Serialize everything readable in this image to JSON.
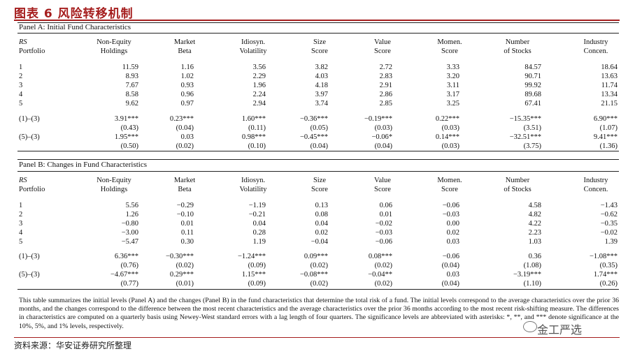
{
  "title": "图表 6 风险转移机制",
  "headers": [
    [
      "RS",
      "Portfolio"
    ],
    [
      "Non-Equity",
      "Holdings"
    ],
    [
      "Market",
      "Beta"
    ],
    [
      "Idiosyn.",
      "Volatility"
    ],
    [
      "Size",
      "Score"
    ],
    [
      "Value",
      "Score"
    ],
    [
      "Momen.",
      "Score"
    ],
    [
      "Number",
      "of Stocks"
    ],
    [
      "Industry",
      "Concen."
    ]
  ],
  "panel_a": {
    "title": "Panel A: Initial Fund Characteristics",
    "rows": [
      [
        "1",
        "11.59",
        "1.16",
        "3.56",
        "3.82",
        "2.72",
        "3.33",
        "84.57",
        "18.64"
      ],
      [
        "2",
        "8.93",
        "1.02",
        "2.29",
        "4.03",
        "2.83",
        "3.20",
        "90.71",
        "13.63"
      ],
      [
        "3",
        "7.67",
        "0.93",
        "1.96",
        "4.18",
        "2.91",
        "3.11",
        "99.92",
        "11.74"
      ],
      [
        "4",
        "8.58",
        "0.96",
        "2.24",
        "3.97",
        "2.86",
        "3.17",
        "89.68",
        "13.34"
      ],
      [
        "5",
        "9.62",
        "0.97",
        "2.94",
        "3.74",
        "2.85",
        "3.25",
        "67.41",
        "21.15"
      ]
    ],
    "diffs": [
      [
        "(1)–(3)",
        "3.91***",
        "0.23***",
        "1.60***",
        "−0.36***",
        "−0.19***",
        "0.22***",
        "−15.35***",
        "6.90***"
      ],
      [
        "",
        "(0.43)",
        "(0.04)",
        "(0.11)",
        "(0.05)",
        "(0.03)",
        "(0.03)",
        "(3.51)",
        "(1.07)"
      ],
      [
        "(5)–(3)",
        "1.95***",
        "0.03",
        "0.98***",
        "−0.45***",
        "−0.06*",
        "0.14***",
        "−32.51***",
        "9.41***"
      ],
      [
        "",
        "(0.50)",
        "(0.02)",
        "(0.10)",
        "(0.04)",
        "(0.04)",
        "(0.03)",
        "(3.75)",
        "(1.36)"
      ]
    ]
  },
  "panel_b": {
    "title": "Panel B: Changes in Fund Characteristics",
    "rows": [
      [
        "1",
        "5.56",
        "−0.29",
        "−1.19",
        "0.13",
        "0.06",
        "−0.06",
        "4.58",
        "−1.43"
      ],
      [
        "2",
        "1.26",
        "−0.10",
        "−0.21",
        "0.08",
        "0.01",
        "−0.03",
        "4.82",
        "−0.62"
      ],
      [
        "3",
        "−0.80",
        "0.01",
        "0.04",
        "0.04",
        "−0.02",
        "0.00",
        "4.22",
        "−0.35"
      ],
      [
        "4",
        "−3.00",
        "0.11",
        "0.28",
        "0.02",
        "−0.03",
        "0.02",
        "2.23",
        "−0.02"
      ],
      [
        "5",
        "−5.47",
        "0.30",
        "1.19",
        "−0.04",
        "−0.06",
        "0.03",
        "1.03",
        "1.39"
      ]
    ],
    "diffs": [
      [
        "(1)–(3)",
        "6.36***",
        "−0.30***",
        "−1.24***",
        "0.09***",
        "0.08***",
        "−0.06",
        "0.36",
        "−1.08***"
      ],
      [
        "",
        "(0.76)",
        "(0.02)",
        "(0.09)",
        "(0.02)",
        "(0.02)",
        "(0.04)",
        "(1.08)",
        "(0.35)"
      ],
      [
        "(5)–(3)",
        "−4.67***",
        "0.29***",
        "1.15***",
        "−0.08***",
        "−0.04**",
        "0.03",
        "−3.19***",
        "1.74***"
      ],
      [
        "",
        "(0.77)",
        "(0.01)",
        "(0.09)",
        "(0.02)",
        "(0.02)",
        "(0.04)",
        "(1.10)",
        "(0.26)"
      ]
    ]
  },
  "note": "This table summarizes the initial levels (Panel A) and the changes (Panel B) in the fund characteristics that determine the total risk of a fund. The initial levels correspond to the average characteristics over the prior 36 months, and the changes correspond to the difference between the most recent characteristics and the average characteristics over the prior 36 months according to the most recent risk-shifting measure. The differences in characteristics are computed on a quarterly basis using Newey-West standard errors with a lag length of four quarters. The significance levels are abbreviated with asterisks: *, **, and *** denote significance at the 10%, 5%, and 1% levels, respectively.",
  "source": "资料来源：华安证券研究所整理",
  "watermark": "金工严选",
  "colors": {
    "accent": "#a51d1d"
  }
}
